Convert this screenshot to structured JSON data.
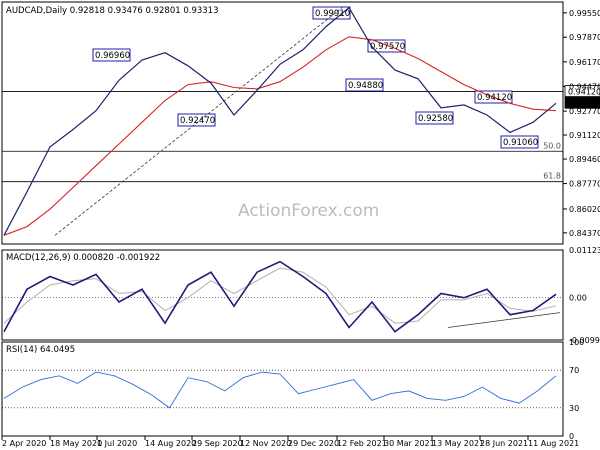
{
  "chart_data": [
    {
      "type": "line",
      "panel": "price",
      "title": "AUDCAD,Daily  0.92818 0.93476 0.92801 0.93313",
      "watermark": "ActionForex.com",
      "ylim": [
        0.836,
        1.003
      ],
      "y_ticks": [
        "0.99550",
        "0.97870",
        "0.96170",
        "0.94470",
        "0.92770",
        "0.91120",
        "0.89460",
        "0.87770",
        "0.86020",
        "0.84370"
      ],
      "x_ticks": [
        "2 Apr 2020",
        "18 May 2020",
        "1 Jul 2020",
        "14 Aug 2020",
        "29 Sep 2020",
        "12 Nov 2020",
        "29 Dec 2020",
        "12 Feb 2021",
        "30 Mar 2021",
        "13 May 2021",
        "28 Jun 2021",
        "11 Aug 2021"
      ],
      "series": [
        {
          "values": [
            0.842,
            0.872,
            0.903,
            0.915,
            0.928,
            0.949,
            0.963,
            0.968,
            0.959,
            0.947,
            0.925,
            0.942,
            0.96,
            0.97,
            0.986,
            0.9991,
            0.972,
            0.956,
            0.95,
            0.93,
            0.932,
            0.925,
            0.913,
            0.92,
            0.9331
          ]
        },
        {
          "values": [
            0.842,
            0.848,
            0.86,
            0.875,
            0.89,
            0.905,
            0.92,
            0.935,
            0.946,
            0.948,
            0.944,
            0.943,
            0.948,
            0.958,
            0.97,
            0.979,
            0.977,
            0.971,
            0.964,
            0.955,
            0.946,
            0.939,
            0.933,
            0.929,
            0.928
          ]
        }
      ],
      "point_labels": [
        "0.99910",
        "0.97570",
        "0.96960",
        "0.94880",
        "0.92470",
        "0.94120",
        "0.92580",
        "0.91060"
      ],
      "current_price": "0.93313",
      "highlight_level": "0.94120",
      "fib_labels": [
        "50.0",
        "61.8"
      ],
      "colors": {
        "price": "#22226a",
        "sma": "#d62424",
        "label_border": "#1f1fb0"
      }
    },
    {
      "type": "line",
      "panel": "macd",
      "title": "MACD(12,26,9) 0.000820 -0.001922",
      "y_ticks": [
        "0.011234",
        "0.00",
        "-0.009942"
      ],
      "series": [
        {
          "values": [
            -0.008,
            0.002,
            0.005,
            0.003,
            0.0055,
            -0.001,
            0.002,
            -0.006,
            0.003,
            0.006,
            -0.002,
            0.006,
            0.0085,
            0.005,
            0.001,
            -0.007,
            -0.001,
            -0.008,
            -0.004,
            0.001,
            0.0,
            0.002,
            -0.004,
            -0.003,
            0.0008
          ]
        },
        {
          "values": [
            -0.006,
            -0.001,
            0.003,
            0.004,
            0.0045,
            0.001,
            0.0015,
            -0.003,
            0.0,
            0.004,
            0.001,
            0.004,
            0.007,
            0.006,
            0.0025,
            -0.004,
            -0.002,
            -0.006,
            -0.0055,
            -0.0005,
            -0.0005,
            0.001,
            -0.0025,
            -0.0032,
            -0.0019
          ]
        }
      ],
      "colors": {
        "macd": "#1c1c7a",
        "signal": "#b0b0b0"
      }
    },
    {
      "type": "line",
      "panel": "rsi",
      "title": "RSI(14) 64.0495",
      "y_ticks": [
        "100",
        "70",
        "30",
        "0"
      ],
      "series": [
        {
          "values": [
            40,
            52,
            60,
            64,
            56,
            68,
            64,
            55,
            44,
            30,
            62,
            58,
            48,
            62,
            68,
            66,
            45,
            50,
            55,
            60,
            38,
            45,
            48,
            40,
            38,
            42,
            52,
            40,
            35,
            48,
            64
          ]
        }
      ],
      "colors": {
        "rsi": "#2a6fd6"
      }
    }
  ]
}
